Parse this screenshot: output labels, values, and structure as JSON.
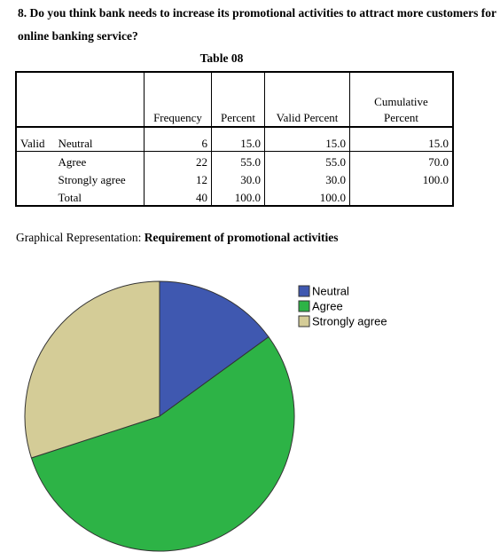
{
  "question": "8. Do you think bank needs to increase its promotional activities to attract more customers for online banking service?",
  "table": {
    "caption": "Table 08",
    "headers": [
      "Frequency",
      "Percent",
      "Valid Percent",
      "Cumulative Percent"
    ],
    "rows": [
      {
        "group": "Valid",
        "label": "Neutral",
        "cells": [
          "6",
          "15.0",
          "15.0",
          "15.0"
        ]
      },
      {
        "label": "Agree",
        "cells": [
          "22",
          "55.0",
          "55.0",
          "70.0"
        ]
      },
      {
        "label": "Strongly agree",
        "cells": [
          "12",
          "30.0",
          "30.0",
          "100.0"
        ]
      },
      {
        "label": "Total",
        "cells": [
          "40",
          "100.0",
          "100.0"
        ]
      }
    ]
  },
  "figure": {
    "prefix": "Graphical Representation:",
    "title": "Requirement of promotional activities"
  },
  "chart_data": {
    "type": "pie",
    "categories": [
      "Neutral",
      "Agree",
      "Strongly agree"
    ],
    "values": [
      15,
      55,
      30
    ],
    "colors": [
      "#3f58b0",
      "#2db346",
      "#d4cc97"
    ]
  }
}
